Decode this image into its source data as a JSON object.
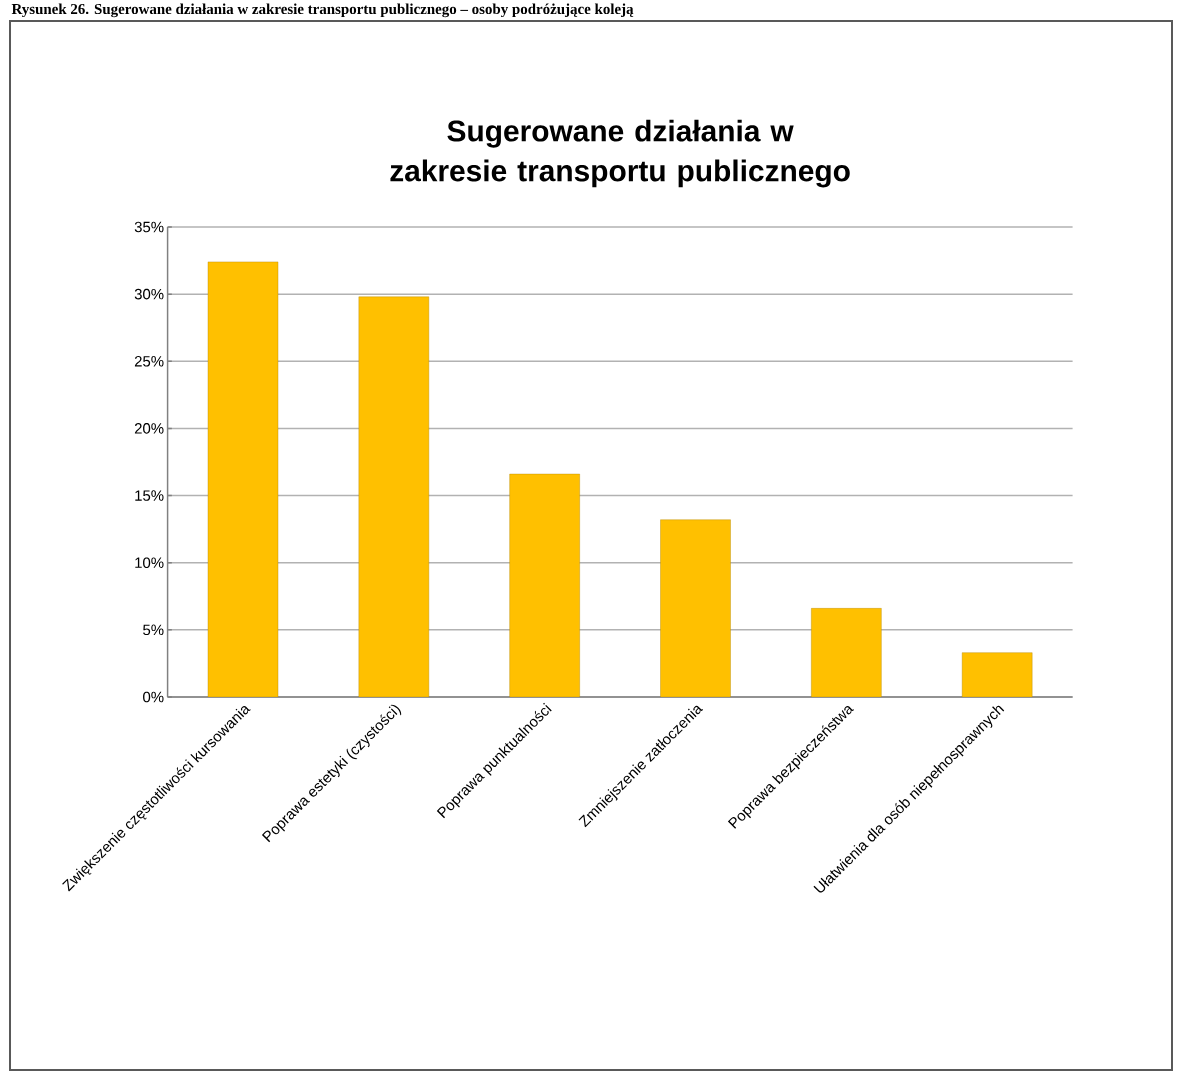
{
  "chart_data": {
    "type": "bar",
    "title": "Sugerowane działania w zakresie transportu publicznego",
    "annotations": [
      "Rysunek 26. Sugerowane działania w zakresie transportu publicznego – osoby podróżujące koleją"
    ],
    "categories": [
      "Zwiększenie częstotliwości kursowania",
      "Poprawa estetyki (czystości)",
      "Poprawa punktualności",
      "Zmniejszenie zatłoczenia",
      "Poprawa bezpieczeństwa",
      "Ułatwienia dla osób niepełnosprawnych"
    ],
    "values": [
      32.4,
      29.8,
      16.6,
      13.2,
      6.6,
      3.3
    ],
    "color": "#ffc000",
    "ylim": [
      0,
      35
    ],
    "yticks": [
      {
        "value": 0,
        "label": "0%"
      },
      {
        "value": 5,
        "label": "5%"
      },
      {
        "value": 10,
        "label": "10%"
      },
      {
        "value": 15,
        "label": "15%"
      },
      {
        "value": 20,
        "label": "20%"
      },
      {
        "value": 25,
        "label": "25%"
      },
      {
        "value": 30,
        "label": "30%"
      },
      {
        "value": 35,
        "label": "35%"
      }
    ],
    "grid": "y"
  }
}
